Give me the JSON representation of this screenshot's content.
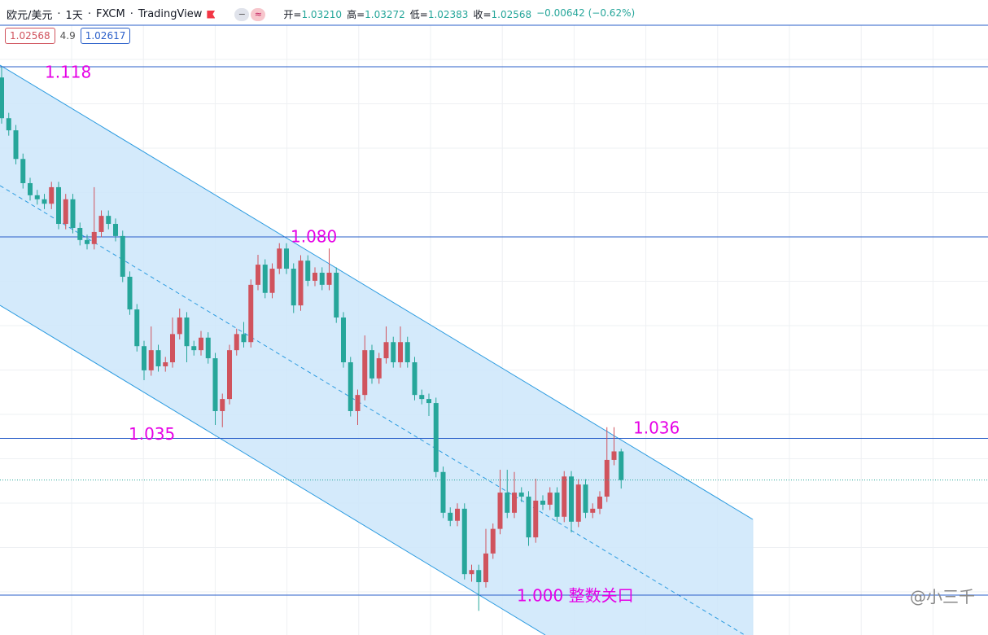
{
  "header": {
    "symbol": "欧元/美元",
    "interval": "1天",
    "broker": "FXCM",
    "platform": "TradingView",
    "ohlc": [
      "开=",
      "1.03210",
      "高=",
      "1.03272",
      "低=",
      "1.02383",
      "收=",
      "1.02568",
      "−0.00642 (−0.62%)"
    ],
    "price_boxes": [
      "1.02568",
      "4.9",
      "1.02617"
    ]
  },
  "watermark": "@小三千",
  "chart_data": {
    "type": "candlestick",
    "colors": {
      "up": "#d0535d",
      "down": "#26a69a"
    },
    "ylim": [
      0.9911,
      1.1329
    ],
    "annotations": [
      {
        "value": 1.118,
        "label": "1.118",
        "line": true
      },
      {
        "value": 1.08,
        "label": "1.080",
        "line": true
      },
      {
        "value": 1.035,
        "label": "1.035",
        "line": true
      },
      {
        "value": 1.036,
        "label": "1.036",
        "line": false
      },
      {
        "value": 1,
        "label": "1.000 整数关口",
        "line": true
      }
    ],
    "open": [
      1.1156,
      1.1065,
      1.1038,
      1.0974,
      1.092,
      1.0893,
      1.0884,
      1.0874,
      1.0911,
      1.0829,
      1.0884,
      1.082,
      1.0793,
      1.0784,
      1.0811,
      1.0847,
      1.0829,
      1.0802,
      1.0711,
      1.0638,
      1.0556,
      1.0502,
      1.0547,
      1.0511,
      1.052,
      1.0583,
      1.062,
      1.0556,
      1.0547,
      1.0575,
      1.0529,
      1.0411,
      1.0438,
      1.0547,
      1.0583,
      1.0565,
      1.0693,
      1.0738,
      1.0675,
      1.0729,
      1.0774,
      1.0729,
      1.0647,
      1.0747,
      1.0702,
      1.072,
      1.0693,
      1.072,
      1.062,
      1.052,
      1.0411,
      1.0447,
      1.0547,
      1.0484,
      1.0529,
      1.0565,
      1.052,
      1.0565,
      1.052,
      1.0447,
      1.0438,
      1.0429,
      1.0275,
      1.0184,
      1.0166,
      1.0193,
      1.0047,
      1.0056,
      1.0029,
      1.0093,
      1.0148,
      1.0229,
      1.0184,
      1.0229,
      1.022,
      1.0129,
      1.0211,
      1.0202,
      1.0229,
      1.0175,
      1.0265,
      1.0164,
      1.0247,
      1.0184,
      1.0193,
      1.022,
      1.0302,
      1.0321
    ],
    "high": [
      1.118,
      1.1077,
      1.105,
      1.0986,
      1.0932,
      1.0905,
      1.0896,
      1.0923,
      1.0923,
      1.0896,
      1.0896,
      1.0832,
      1.0805,
      1.0911,
      1.0859,
      1.0859,
      1.0841,
      1.0814,
      1.0723,
      1.065,
      1.0568,
      1.06,
      1.0559,
      1.0532,
      1.062,
      1.064,
      1.0632,
      1.0568,
      1.059,
      1.0587,
      1.0541,
      1.045,
      1.0559,
      1.0595,
      1.061,
      1.0705,
      1.076,
      1.075,
      1.0741,
      1.0786,
      1.0786,
      1.0741,
      1.0759,
      1.0759,
      1.0732,
      1.0732,
      1.0774,
      1.0732,
      1.0632,
      1.0532,
      1.0459,
      1.058,
      1.0559,
      1.0541,
      1.06,
      1.0577,
      1.06,
      1.0577,
      1.0532,
      1.0459,
      1.045,
      1.0441,
      1.0287,
      1.0196,
      1.0205,
      1.0205,
      1.0068,
      1.0068,
      1.0148,
      1.016,
      1.028,
      1.028,
      1.0275,
      1.0241,
      1.0232,
      1.026,
      1.0223,
      1.0241,
      1.0241,
      1.0277,
      1.0277,
      1.0259,
      1.0259,
      1.0205,
      1.0232,
      1.0375,
      1.0375,
      1.0327
    ],
    "low": [
      1.1053,
      1.1026,
      1.0962,
      1.0908,
      1.0881,
      1.0872,
      1.0862,
      1.0862,
      1.0817,
      1.0817,
      1.0808,
      1.0781,
      1.0772,
      1.0772,
      1.0799,
      1.0817,
      1.079,
      1.0699,
      1.0626,
      1.0544,
      1.048,
      1.049,
      1.0499,
      1.0499,
      1.0508,
      1.0571,
      1.052,
      1.0535,
      1.0535,
      1.0517,
      1.038,
      1.0375,
      1.0426,
      1.0535,
      1.0553,
      1.0553,
      1.0681,
      1.0663,
      1.0663,
      1.0717,
      1.0717,
      1.063,
      1.0635,
      1.069,
      1.069,
      1.0681,
      1.0681,
      1.0608,
      1.0508,
      1.0399,
      1.038,
      1.0435,
      1.0472,
      1.0472,
      1.0517,
      1.0508,
      1.0508,
      1.0508,
      1.0435,
      1.0426,
      1.04,
      1.0263,
      1.0172,
      1.0154,
      1.0154,
      1.0035,
      1.003,
      0.9965,
      1.0017,
      1.0081,
      1.0136,
      1.0172,
      1.0172,
      1.0208,
      1.011,
      1.0117,
      1.019,
      1.019,
      1.0163,
      1.0163,
      1.014,
      1.0152,
      1.0172,
      1.0172,
      1.0181,
      1.0208,
      1.029,
      1.0238
    ],
    "close": [
      1.1065,
      1.1038,
      1.0974,
      1.092,
      1.0893,
      1.0884,
      1.0874,
      1.0911,
      1.0829,
      1.0884,
      1.082,
      1.0793,
      1.0784,
      1.0811,
      1.0847,
      1.0829,
      1.0802,
      1.0711,
      1.0638,
      1.0556,
      1.0502,
      1.0547,
      1.0511,
      1.052,
      1.0583,
      1.062,
      1.0556,
      1.0547,
      1.0575,
      1.0529,
      1.0411,
      1.0438,
      1.0547,
      1.0583,
      1.0565,
      1.0693,
      1.0738,
      1.0675,
      1.0729,
      1.0774,
      1.0729,
      1.0647,
      1.0747,
      1.0702,
      1.072,
      1.0693,
      1.072,
      1.062,
      1.052,
      1.0411,
      1.0447,
      1.0547,
      1.0484,
      1.0529,
      1.0565,
      1.052,
      1.0565,
      1.052,
      1.0447,
      1.0438,
      1.0429,
      1.0275,
      1.0184,
      1.0166,
      1.0193,
      1.0047,
      1.0056,
      1.0029,
      1.0093,
      1.0148,
      1.0229,
      1.0184,
      1.0229,
      1.022,
      1.0129,
      1.0211,
      1.0202,
      1.0229,
      1.0175,
      1.0265,
      1.0164,
      1.0247,
      1.0184,
      1.0193,
      1.022,
      1.0302,
      1.0321,
      1.0257
    ]
  }
}
